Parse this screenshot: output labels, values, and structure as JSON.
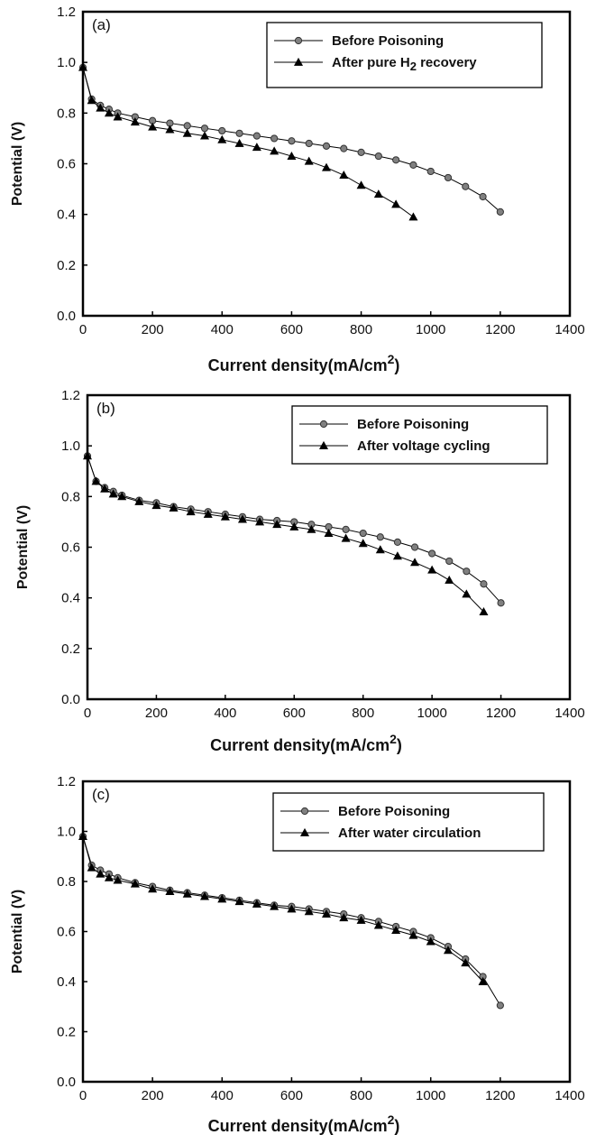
{
  "chart_data": [
    {
      "type": "line",
      "panel_label": "(a)",
      "xlabel": "Current density(mA/cm",
      "xlabel_sup": "2",
      "xlabel_close": ")",
      "ylabel": "Potential (V)",
      "xlim": [
        0,
        1400
      ],
      "ylim": [
        0,
        1.2
      ],
      "xticks": [
        "0",
        "200",
        "400",
        "600",
        "800",
        "1000",
        "1200",
        "1400"
      ],
      "yticks": [
        "0.0",
        "0.2",
        "0.4",
        "0.6",
        "0.8",
        "1.0",
        "1.2"
      ],
      "grid": false,
      "legend_position": "top-right",
      "series": [
        {
          "name": "Before Poisoning",
          "marker": "circle",
          "color": "#808080",
          "x": [
            0,
            25,
            50,
            75,
            100,
            150,
            200,
            250,
            300,
            350,
            400,
            450,
            500,
            550,
            600,
            650,
            700,
            750,
            800,
            850,
            900,
            950,
            1000,
            1050,
            1100,
            1150,
            1200
          ],
          "y": [
            0.98,
            0.855,
            0.83,
            0.815,
            0.8,
            0.785,
            0.77,
            0.76,
            0.75,
            0.74,
            0.73,
            0.72,
            0.71,
            0.7,
            0.69,
            0.68,
            0.67,
            0.66,
            0.645,
            0.63,
            0.615,
            0.595,
            0.57,
            0.545,
            0.51,
            0.47,
            0.41
          ]
        },
        {
          "name": "After pure H",
          "name_sub": "2",
          "name_tail": " recovery",
          "marker": "triangle",
          "color": "#000000",
          "x": [
            0,
            25,
            50,
            75,
            100,
            150,
            200,
            250,
            300,
            350,
            400,
            450,
            500,
            550,
            600,
            650,
            700,
            750,
            800,
            850,
            900,
            950
          ],
          "y": [
            0.98,
            0.85,
            0.82,
            0.8,
            0.785,
            0.765,
            0.745,
            0.735,
            0.72,
            0.71,
            0.695,
            0.68,
            0.665,
            0.65,
            0.63,
            0.61,
            0.585,
            0.555,
            0.515,
            0.48,
            0.44,
            0.39
          ]
        }
      ]
    },
    {
      "type": "line",
      "panel_label": "(b)",
      "xlabel": "Current density(mA/cm",
      "xlabel_sup": "2",
      "xlabel_close": ")",
      "ylabel": "Potential (V)",
      "xlim": [
        0,
        1400
      ],
      "ylim": [
        0,
        1.2
      ],
      "xticks": [
        "0",
        "200",
        "400",
        "600",
        "800",
        "1000",
        "1200",
        "1400"
      ],
      "yticks": [
        "0.0",
        "0.2",
        "0.4",
        "0.6",
        "0.8",
        "1.0",
        "1.2"
      ],
      "grid": false,
      "legend_position": "top-right",
      "series": [
        {
          "name": "Before Poisoning",
          "marker": "circle",
          "color": "#808080",
          "x": [
            0,
            25,
            50,
            75,
            100,
            150,
            200,
            250,
            300,
            350,
            400,
            450,
            500,
            550,
            600,
            650,
            700,
            750,
            800,
            850,
            900,
            950,
            1000,
            1050,
            1100,
            1150,
            1200
          ],
          "y": [
            0.96,
            0.86,
            0.835,
            0.82,
            0.805,
            0.785,
            0.775,
            0.76,
            0.75,
            0.74,
            0.73,
            0.72,
            0.71,
            0.705,
            0.7,
            0.69,
            0.68,
            0.67,
            0.655,
            0.64,
            0.62,
            0.6,
            0.575,
            0.545,
            0.505,
            0.455,
            0.38
          ]
        },
        {
          "name": "After voltage cycling",
          "marker": "triangle",
          "color": "#000000",
          "x": [
            0,
            25,
            50,
            75,
            100,
            150,
            200,
            250,
            300,
            350,
            400,
            450,
            500,
            550,
            600,
            650,
            700,
            750,
            800,
            850,
            900,
            950,
            1000,
            1050,
            1100,
            1150
          ],
          "y": [
            0.96,
            0.86,
            0.83,
            0.81,
            0.8,
            0.78,
            0.765,
            0.755,
            0.74,
            0.73,
            0.72,
            0.71,
            0.7,
            0.69,
            0.68,
            0.67,
            0.655,
            0.635,
            0.615,
            0.59,
            0.565,
            0.54,
            0.51,
            0.47,
            0.415,
            0.345
          ]
        }
      ]
    },
    {
      "type": "line",
      "panel_label": "(c)",
      "xlabel": "Current density(mA/cm",
      "xlabel_sup": "2",
      "xlabel_close": ")",
      "ylabel": "Potential (V)",
      "xlim": [
        0,
        1400
      ],
      "ylim": [
        0,
        1.2
      ],
      "xticks": [
        "0",
        "200",
        "400",
        "600",
        "800",
        "1000",
        "1200",
        "1400"
      ],
      "yticks": [
        "0.0",
        "0.2",
        "0.4",
        "0.6",
        "0.8",
        "1.0",
        "1.2"
      ],
      "grid": false,
      "legend_position": "top-right",
      "series": [
        {
          "name": "Before Poisoning",
          "marker": "circle",
          "color": "#808080",
          "x": [
            0,
            25,
            50,
            75,
            100,
            150,
            200,
            250,
            300,
            350,
            400,
            450,
            500,
            550,
            600,
            650,
            700,
            750,
            800,
            850,
            900,
            950,
            1000,
            1050,
            1100,
            1150,
            1200
          ],
          "y": [
            0.98,
            0.865,
            0.845,
            0.83,
            0.815,
            0.795,
            0.78,
            0.765,
            0.755,
            0.745,
            0.735,
            0.725,
            0.715,
            0.705,
            0.7,
            0.69,
            0.68,
            0.67,
            0.655,
            0.64,
            0.62,
            0.6,
            0.575,
            0.54,
            0.49,
            0.42,
            0.305
          ]
        },
        {
          "name": "After water circulation",
          "marker": "triangle",
          "color": "#000000",
          "x": [
            0,
            25,
            50,
            75,
            100,
            150,
            200,
            250,
            300,
            350,
            400,
            450,
            500,
            550,
            600,
            650,
            700,
            750,
            800,
            850,
            900,
            950,
            1000,
            1050,
            1100,
            1150
          ],
          "y": [
            0.98,
            0.855,
            0.83,
            0.815,
            0.805,
            0.79,
            0.77,
            0.76,
            0.75,
            0.74,
            0.73,
            0.72,
            0.71,
            0.7,
            0.69,
            0.68,
            0.67,
            0.655,
            0.645,
            0.625,
            0.605,
            0.585,
            0.56,
            0.525,
            0.475,
            0.4
          ]
        }
      ]
    }
  ]
}
